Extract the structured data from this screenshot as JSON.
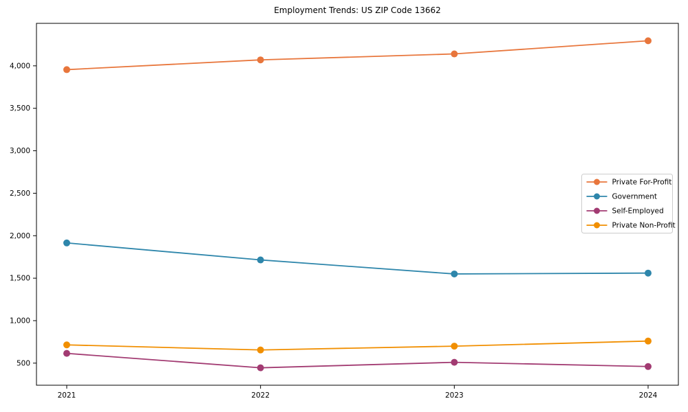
{
  "title": "Employment Trends: US ZIP Code 13662",
  "chart_data": {
    "type": "line",
    "title": "Employment Trends: US ZIP Code 13662",
    "x": [
      2021,
      2022,
      2023,
      2024
    ],
    "x_labels": [
      "2021",
      "2022",
      "2023",
      "2024"
    ],
    "series": [
      {
        "name": "Private For-Profit",
        "color": "#E8763C",
        "values": [
          3955,
          4070,
          4140,
          4295
        ]
      },
      {
        "name": "Government",
        "color": "#2E86AB",
        "values": [
          1915,
          1715,
          1550,
          1560
        ]
      },
      {
        "name": "Self-Employed",
        "color": "#A23B72",
        "values": [
          615,
          445,
          510,
          460
        ]
      },
      {
        "name": "Private Non-Profit",
        "color": "#F18F01",
        "values": [
          715,
          655,
          700,
          760
        ]
      }
    ],
    "ylim": [
      240,
      4500
    ],
    "yticks": [
      500,
      1000,
      1500,
      2000,
      2500,
      3000,
      3500,
      4000
    ],
    "ytick_labels": [
      "500",
      "1,000",
      "1,500",
      "2,000",
      "2,500",
      "3,000",
      "3,500",
      "4,000"
    ],
    "xlabel": "",
    "ylabel": "",
    "grid": false,
    "legend": {
      "position": "center-right",
      "entries": [
        "Private For-Profit",
        "Government",
        "Self-Employed",
        "Private Non-Profit"
      ]
    }
  },
  "style": {
    "axis_color": "#000000",
    "background": "#ffffff",
    "legend_border": "#cccccc",
    "legend_background": "#ffffff"
  }
}
